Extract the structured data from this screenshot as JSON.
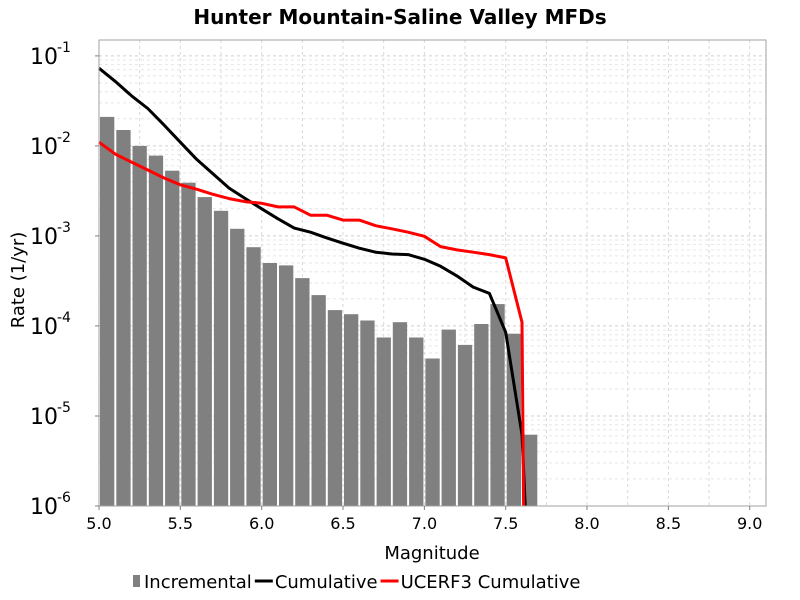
{
  "chart_data": {
    "type": "bar",
    "title": "Hunter Mountain-Saline Valley MFDs",
    "xlabel": "Magnitude",
    "ylabel": "Rate (1/yr)",
    "x_scale": "linear",
    "y_scale": "log",
    "xlim": [
      5.0,
      9.1
    ],
    "ylim": [
      1e-06,
      0.15
    ],
    "x_ticks": [
      "5.0",
      "5.5",
      "6.0",
      "6.5",
      "7.0",
      "7.5",
      "8.0",
      "8.5",
      "9.0"
    ],
    "x_tick_values": [
      5.0,
      5.5,
      6.0,
      6.5,
      7.0,
      7.5,
      8.0,
      8.5,
      9.0
    ],
    "y_ticks": [
      {
        "base": "10",
        "exp": "-1",
        "value": 0.1
      },
      {
        "base": "10",
        "exp": "-2",
        "value": 0.01
      },
      {
        "base": "10",
        "exp": "-3",
        "value": 0.001
      },
      {
        "base": "10",
        "exp": "-4",
        "value": 0.0001
      },
      {
        "base": "10",
        "exp": "-5",
        "value": 1e-05
      },
      {
        "base": "10",
        "exp": "-6",
        "value": 1e-06
      }
    ],
    "grid": true,
    "legend_position": "bottom",
    "bar_width": 0.1,
    "series": [
      {
        "name": "Incremental",
        "kind": "bar",
        "color": "#808080",
        "x": [
          5.05,
          5.15,
          5.25,
          5.35,
          5.45,
          5.55,
          5.65,
          5.75,
          5.85,
          5.95,
          6.05,
          6.15,
          6.25,
          6.35,
          6.45,
          6.55,
          6.65,
          6.75,
          6.85,
          6.95,
          7.05,
          7.15,
          7.25,
          7.35,
          7.45,
          7.55,
          7.65
        ],
        "values": [
          0.021,
          0.015,
          0.01,
          0.0078,
          0.0053,
          0.0039,
          0.0027,
          0.0019,
          0.0012,
          0.00075,
          0.0005,
          0.00047,
          0.00034,
          0.00022,
          0.00015,
          0.000135,
          0.000115,
          7.45e-05,
          0.00011,
          7.45e-05,
          4.35e-05,
          9.1e-05,
          6.15e-05,
          0.000105,
          0.000175,
          8.2e-05,
          6.2e-06
        ]
      },
      {
        "name": "Cumulative",
        "kind": "line",
        "color": "#000000",
        "x": [
          5.0,
          5.1,
          5.2,
          5.3,
          5.4,
          5.5,
          5.6,
          5.7,
          5.8,
          5.9,
          6.0,
          6.1,
          6.2,
          6.3,
          6.4,
          6.5,
          6.6,
          6.7,
          6.8,
          6.9,
          7.0,
          7.1,
          7.2,
          7.3,
          7.4,
          7.5,
          7.6,
          7.62
        ],
        "values": [
          0.073,
          0.052,
          0.036,
          0.026,
          0.017,
          0.011,
          0.0071,
          0.0049,
          0.0034,
          0.0026,
          0.002,
          0.00155,
          0.00122,
          0.0011,
          0.00095,
          0.00083,
          0.00073,
          0.00066,
          0.00063,
          0.00062,
          0.00055,
          0.00046,
          0.00036,
          0.00027,
          0.00023,
          8.5e-05,
          6.2e-06,
          1e-06
        ]
      },
      {
        "name": "UCERF3 Cumulative",
        "kind": "line",
        "color": "#ff0000",
        "x": [
          5.0,
          5.1,
          5.2,
          5.3,
          5.4,
          5.5,
          5.6,
          5.7,
          5.8,
          5.9,
          6.0,
          6.1,
          6.2,
          6.3,
          6.4,
          6.5,
          6.6,
          6.7,
          6.8,
          6.9,
          7.0,
          7.1,
          7.2,
          7.3,
          7.4,
          7.5,
          7.6,
          7.61
        ],
        "values": [
          0.011,
          0.0081,
          0.0066,
          0.0054,
          0.0044,
          0.0037,
          0.0033,
          0.0029,
          0.0026,
          0.0024,
          0.0023,
          0.0021,
          0.0021,
          0.0017,
          0.0017,
          0.0015,
          0.0015,
          0.0013,
          0.0012,
          0.0011,
          0.00099,
          0.00076,
          0.0007,
          0.00066,
          0.00062,
          0.00057,
          0.00011,
          1e-06
        ]
      }
    ]
  },
  "legend": {
    "items": [
      {
        "label": "Incremental",
        "kind": "bar",
        "color": "#808080"
      },
      {
        "label": "Cumulative",
        "kind": "line",
        "color": "#000000"
      },
      {
        "label": "UCERF3 Cumulative",
        "kind": "line",
        "color": "#ff0000"
      }
    ]
  }
}
